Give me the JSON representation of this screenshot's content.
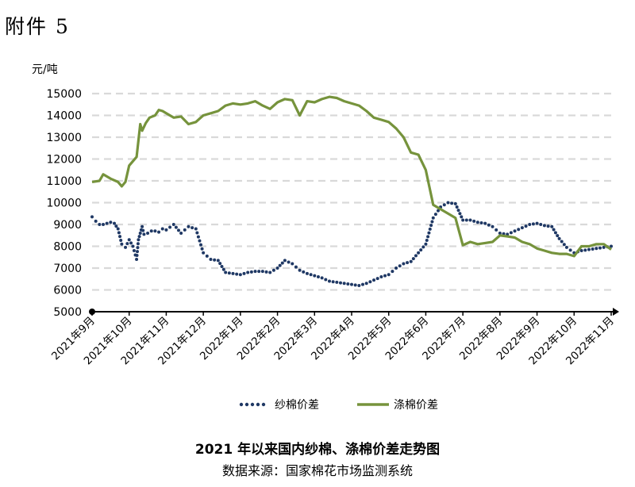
{
  "page_label": "附件 5",
  "chart_data": {
    "type": "line",
    "title": "2021 年以来国内纱棉、涤棉价差走势图",
    "source": "数据来源：国家棉花市场监测系统",
    "ylabel": "元/吨",
    "ylim": [
      5000,
      15000
    ],
    "yticks": [
      5000,
      6000,
      7000,
      8000,
      9000,
      10000,
      11000,
      12000,
      13000,
      14000,
      15000
    ],
    "grid": true,
    "legend_position": "bottom",
    "categories": [
      "2021年9月",
      "2021年10月",
      "2021年11月",
      "2021年12月",
      "2022年1月",
      "2022年2月",
      "2022年3月",
      "2022年4月",
      "2022年5月",
      "2022年6月",
      "2022年7月",
      "2022年8月",
      "2022年9月",
      "2022年10月",
      "2022年11月"
    ],
    "series": [
      {
        "name": "纱棉价差",
        "style": "dotted",
        "color": "#1f3864",
        "x": [
          0,
          0.1,
          0.2,
          0.3,
          0.4,
          0.5,
          0.6,
          0.7,
          0.8,
          0.9,
          1.0,
          1.1,
          1.2,
          1.25,
          1.3,
          1.35,
          1.4,
          1.5,
          1.6,
          1.7,
          1.8,
          1.9,
          2.0,
          2.2,
          2.4,
          2.6,
          2.8,
          3.0,
          3.2,
          3.4,
          3.6,
          3.8,
          4.0,
          4.2,
          4.4,
          4.6,
          4.8,
          5.0,
          5.2,
          5.4,
          5.6,
          5.8,
          6.0,
          6.2,
          6.4,
          6.6,
          6.8,
          7.0,
          7.2,
          7.4,
          7.6,
          7.8,
          8.0,
          8.2,
          8.4,
          8.6,
          8.8,
          9.0,
          9.2,
          9.4,
          9.6,
          9.8,
          10.0,
          10.2,
          10.4,
          10.6,
          10.8,
          11.0,
          11.2,
          11.4,
          11.6,
          11.8,
          12.0,
          12.2,
          12.4,
          12.6,
          12.8,
          13.0,
          13.2,
          13.4,
          13.6,
          13.8,
          14.0
        ],
        "values": [
          9350,
          9150,
          9000,
          9000,
          9050,
          9100,
          9050,
          8800,
          8100,
          7950,
          8300,
          8000,
          7400,
          8300,
          8600,
          8900,
          8550,
          8600,
          8700,
          8700,
          8650,
          8800,
          8750,
          9000,
          8600,
          8900,
          8800,
          7700,
          7400,
          7350,
          6800,
          6750,
          6700,
          6800,
          6850,
          6850,
          6800,
          7000,
          7350,
          7200,
          6900,
          6750,
          6650,
          6550,
          6400,
          6350,
          6300,
          6250,
          6200,
          6300,
          6450,
          6600,
          6700,
          7000,
          7200,
          7300,
          7700,
          8100,
          9300,
          9800,
          10000,
          9950,
          9200,
          9200,
          9100,
          9050,
          8900,
          8600,
          8550,
          8700,
          8850,
          9000,
          9050,
          8950,
          8900,
          8350,
          7950,
          7700,
          7800,
          7850,
          7900,
          7950,
          8000
        ]
      },
      {
        "name": "涤棉价差",
        "style": "solid",
        "color": "#76933c",
        "x": [
          0,
          0.2,
          0.3,
          0.5,
          0.7,
          0.8,
          0.9,
          1.0,
          1.2,
          1.3,
          1.35,
          1.45,
          1.55,
          1.7,
          1.8,
          1.9,
          2.0,
          2.2,
          2.4,
          2.6,
          2.8,
          2.9,
          3.0,
          3.2,
          3.4,
          3.6,
          3.8,
          4.0,
          4.2,
          4.4,
          4.6,
          4.8,
          5.0,
          5.2,
          5.4,
          5.6,
          5.8,
          6.0,
          6.2,
          6.4,
          6.6,
          6.8,
          7.0,
          7.2,
          7.4,
          7.6,
          7.8,
          8.0,
          8.2,
          8.4,
          8.6,
          8.8,
          9.0,
          9.2,
          9.4,
          9.6,
          9.8,
          10.0,
          10.2,
          10.4,
          10.6,
          10.8,
          11.0,
          11.2,
          11.4,
          11.6,
          11.8,
          12.0,
          12.2,
          12.4,
          12.6,
          12.8,
          13.0,
          13.2,
          13.4,
          13.6,
          13.8,
          14.0
        ],
        "values": [
          10950,
          11000,
          11300,
          11100,
          10950,
          10750,
          10950,
          11700,
          12100,
          13600,
          13300,
          13650,
          13900,
          14000,
          14250,
          14200,
          14100,
          13900,
          13950,
          13600,
          13700,
          13850,
          14000,
          14100,
          14200,
          14450,
          14550,
          14500,
          14550,
          14650,
          14450,
          14300,
          14600,
          14750,
          14700,
          14000,
          14650,
          14600,
          14750,
          14850,
          14800,
          14650,
          14550,
          14450,
          14200,
          13900,
          13800,
          13700,
          13400,
          13000,
          12300,
          12200,
          11500,
          9900,
          9700,
          9500,
          9300,
          8050,
          8200,
          8100,
          8150,
          8200,
          8500,
          8450,
          8400,
          8200,
          8100,
          7900,
          7800,
          7700,
          7650,
          7650,
          7550,
          8000,
          8000,
          8100,
          8100,
          7850
        ]
      }
    ]
  }
}
